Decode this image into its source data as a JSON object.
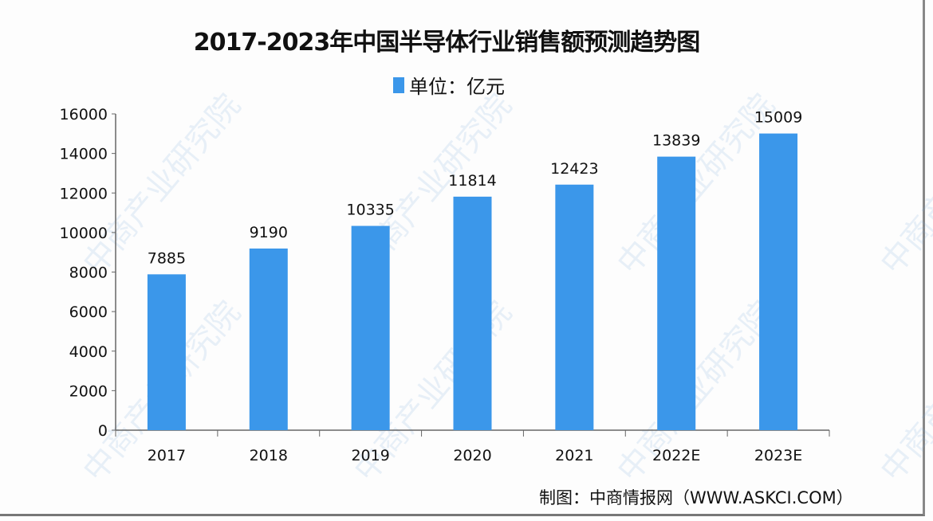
{
  "chart_data": {
    "type": "bar",
    "title": "2017-2023年中国半导体行业销售额预测趋势图",
    "legend": {
      "label": "单位：亿元",
      "placement": "top"
    },
    "categories": [
      "2017",
      "2018",
      "2019",
      "2020",
      "2021",
      "2022E",
      "2023E"
    ],
    "values": [
      7885,
      9190,
      10335,
      11814,
      12423,
      13839,
      15009
    ],
    "ylim": [
      0,
      16000
    ],
    "yticks": [
      0,
      2000,
      4000,
      6000,
      8000,
      10000,
      12000,
      14000,
      16000
    ],
    "grid": false,
    "data_labels": true,
    "xlabel": "",
    "ylabel": "",
    "bar_color": "#3b97ea"
  },
  "source": "制图：中商情报网（WWW.ASKCI.COM）",
  "watermark": "中商产业研究院"
}
